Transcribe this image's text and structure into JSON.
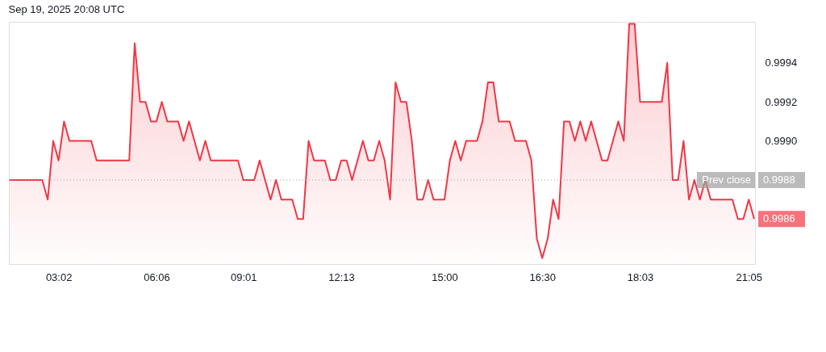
{
  "chart_data": {
    "type": "area",
    "categories": [
      null,
      null,
      null,
      null,
      null,
      null,
      null,
      null,
      null,
      "03:02",
      null,
      null,
      null,
      null,
      null,
      null,
      null,
      null,
      null,
      null,
      null,
      null,
      null,
      null,
      null,
      null,
      null,
      "06:06",
      null,
      null,
      null,
      null,
      null,
      null,
      null,
      null,
      null,
      null,
      null,
      null,
      null,
      null,
      null,
      "09:01",
      null,
      null,
      null,
      null,
      null,
      null,
      null,
      null,
      null,
      null,
      null,
      null,
      null,
      null,
      null,
      null,
      null,
      "12:13",
      null,
      null,
      null,
      null,
      null,
      null,
      null,
      null,
      null,
      null,
      null,
      null,
      null,
      null,
      null,
      null,
      null,
      null,
      "15:00",
      null,
      null,
      null,
      null,
      null,
      null,
      null,
      null,
      null,
      null,
      null,
      null,
      null,
      null,
      null,
      null,
      null,
      "16:30",
      null,
      null,
      null,
      null,
      null,
      null,
      null,
      null,
      null,
      null,
      null,
      null,
      null,
      null,
      null,
      null,
      null,
      "18:03",
      null,
      null,
      null,
      null,
      null,
      null,
      null,
      null,
      null,
      null,
      null,
      null,
      null,
      null,
      null,
      null,
      null,
      null,
      null,
      "21:05",
      null
    ],
    "series": [
      {
        "color": "#f23645",
        "values": [
          0.9988,
          0.9988,
          0.9988,
          0.9988,
          0.9988,
          0.9988,
          0.9988,
          0.9987,
          0.999,
          0.9989,
          0.9991,
          0.999,
          0.999,
          0.999,
          0.999,
          0.999,
          0.9989,
          0.9989,
          0.9989,
          0.9989,
          0.9989,
          0.9989,
          0.9989,
          0.9995,
          0.9992,
          0.9992,
          0.9991,
          0.9991,
          0.9992,
          0.9991,
          0.9991,
          0.9991,
          0.999,
          0.9991,
          0.999,
          0.9989,
          0.999,
          0.9989,
          0.9989,
          0.9989,
          0.9989,
          0.9989,
          0.9989,
          0.9988,
          0.9988,
          0.9988,
          0.9989,
          0.9988,
          0.9987,
          0.9988,
          0.9987,
          0.9987,
          0.9987,
          0.9986,
          0.9986,
          0.999,
          0.9989,
          0.9989,
          0.9989,
          0.9988,
          0.9988,
          0.9989,
          0.9989,
          0.9988,
          0.9989,
          0.999,
          0.9989,
          0.9989,
          0.999,
          0.9989,
          0.9987,
          0.9993,
          0.9992,
          0.9992,
          0.999,
          0.9987,
          0.9987,
          0.9988,
          0.9987,
          0.9987,
          0.9987,
          0.9989,
          0.999,
          0.9989,
          0.999,
          0.999,
          0.999,
          0.9991,
          0.9993,
          0.9993,
          0.9991,
          0.9991,
          0.9991,
          0.999,
          0.999,
          0.999,
          0.9989,
          0.9985,
          0.9984,
          0.9985,
          0.9987,
          0.9986,
          0.9991,
          0.9991,
          0.999,
          0.9991,
          0.999,
          0.9991,
          0.999,
          0.9989,
          0.9989,
          0.999,
          0.9991,
          0.999,
          0.9996,
          0.9996,
          0.9992,
          0.9992,
          0.9992,
          0.9992,
          0.9992,
          0.9994,
          0.9988,
          0.9988,
          0.999,
          0.9987,
          0.9988,
          0.9987,
          0.9988,
          0.9987,
          0.9987,
          0.9987,
          0.9987,
          0.9987,
          0.9986,
          0.9986,
          0.9987,
          0.9986
        ]
      }
    ],
    "ylim": [
      0.99837,
      0.99961
    ],
    "yticks": [
      {
        "value": 0.999,
        "label": "0.9990"
      },
      {
        "value": 0.9992,
        "label": "0.9992"
      },
      {
        "value": 0.9994,
        "label": "0.9994"
      }
    ],
    "ref_lines": [
      {
        "axis": "y",
        "value": 0.9988,
        "label": "Prev close",
        "color": "#9e9e9e",
        "line_style": "dotted"
      }
    ],
    "annotations": [
      "Sep 19, 2025 20:08 UTC",
      "0.9988",
      "0.9986"
    ],
    "grid": false
  }
}
